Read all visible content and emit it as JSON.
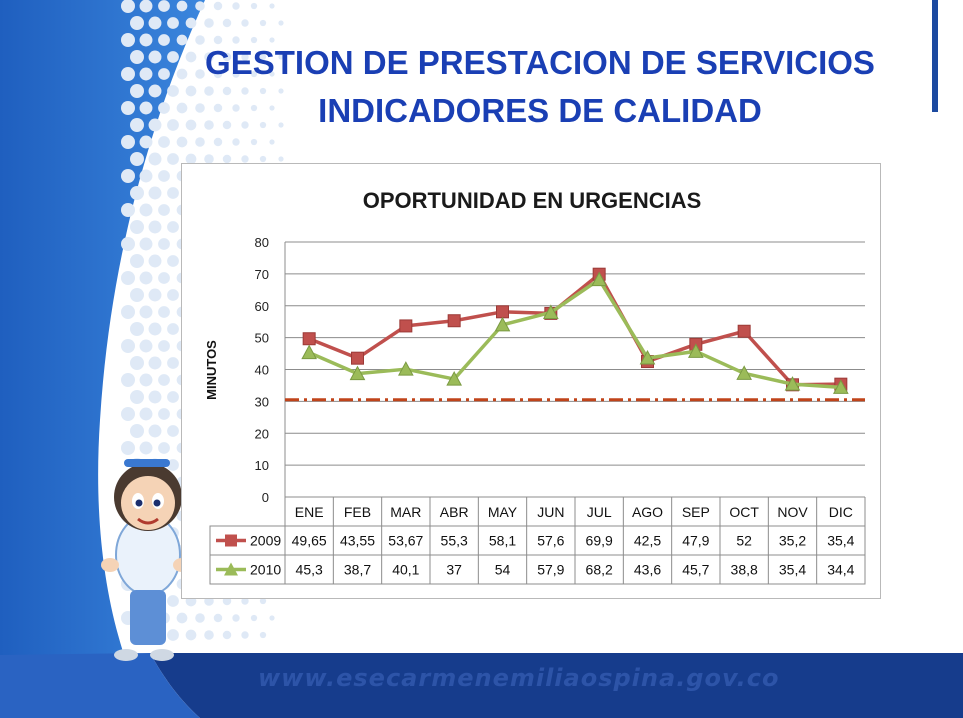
{
  "slide": {
    "title_line1": "GESTION DE PRESTACION DE SERVICIOS",
    "title_line2": "INDICADORES DE CALIDAD",
    "footer_url": "www.esecarmenemiliaospina.gov.co"
  },
  "colors": {
    "title_blue": "#1a3fb4",
    "band_blue": "#163c8c",
    "light_blue": "#4a8fd8",
    "series_2009": "#c0504d",
    "series_2010": "#9bbb59",
    "target_line": "#c0441a"
  },
  "icons": {
    "mascot": "cartoon-nurse-girl-icon"
  },
  "chart_data": {
    "type": "line",
    "title": "OPORTUNIDAD EN URGENCIAS",
    "xlabel": "",
    "ylabel": "MINUTOS",
    "ylim": [
      0,
      80
    ],
    "yticks": [
      0,
      10,
      20,
      30,
      40,
      50,
      60,
      70,
      80
    ],
    "ytick_labels": [
      "0",
      "10",
      "20",
      "30",
      "40",
      "50",
      "60",
      "70",
      "80"
    ],
    "grid": true,
    "legend": "data-table-below",
    "categories": [
      "ENE",
      "FEB",
      "MAR",
      "ABR",
      "MAY",
      "JUN",
      "JUL",
      "AGO",
      "SEP",
      "OCT",
      "NOV",
      "DIC"
    ],
    "series": [
      {
        "name": "2009",
        "values": [
          49.65,
          43.55,
          53.67,
          55.3,
          58.1,
          57.6,
          69.9,
          42.5,
          47.9,
          52,
          35.2,
          35.4
        ],
        "labels": [
          "49,65",
          "43,55",
          "53,67",
          "55,3",
          "58,1",
          "57,6",
          "69,9",
          "42,5",
          "47,9",
          "52",
          "35,2",
          "35,4"
        ],
        "marker": "square"
      },
      {
        "name": "2010",
        "values": [
          45.3,
          38.7,
          40.1,
          37,
          54,
          57.9,
          68.2,
          43.6,
          45.7,
          38.8,
          35.4,
          34.4
        ],
        "labels": [
          "45,3",
          "38,7",
          "40,1",
          "37",
          "54",
          "57,9",
          "68,2",
          "43,6",
          "45,7",
          "38,8",
          "35,4",
          "34,4"
        ],
        "marker": "triangle"
      }
    ],
    "reference_line": {
      "value": 30.5,
      "style": "dash-dot"
    }
  }
}
